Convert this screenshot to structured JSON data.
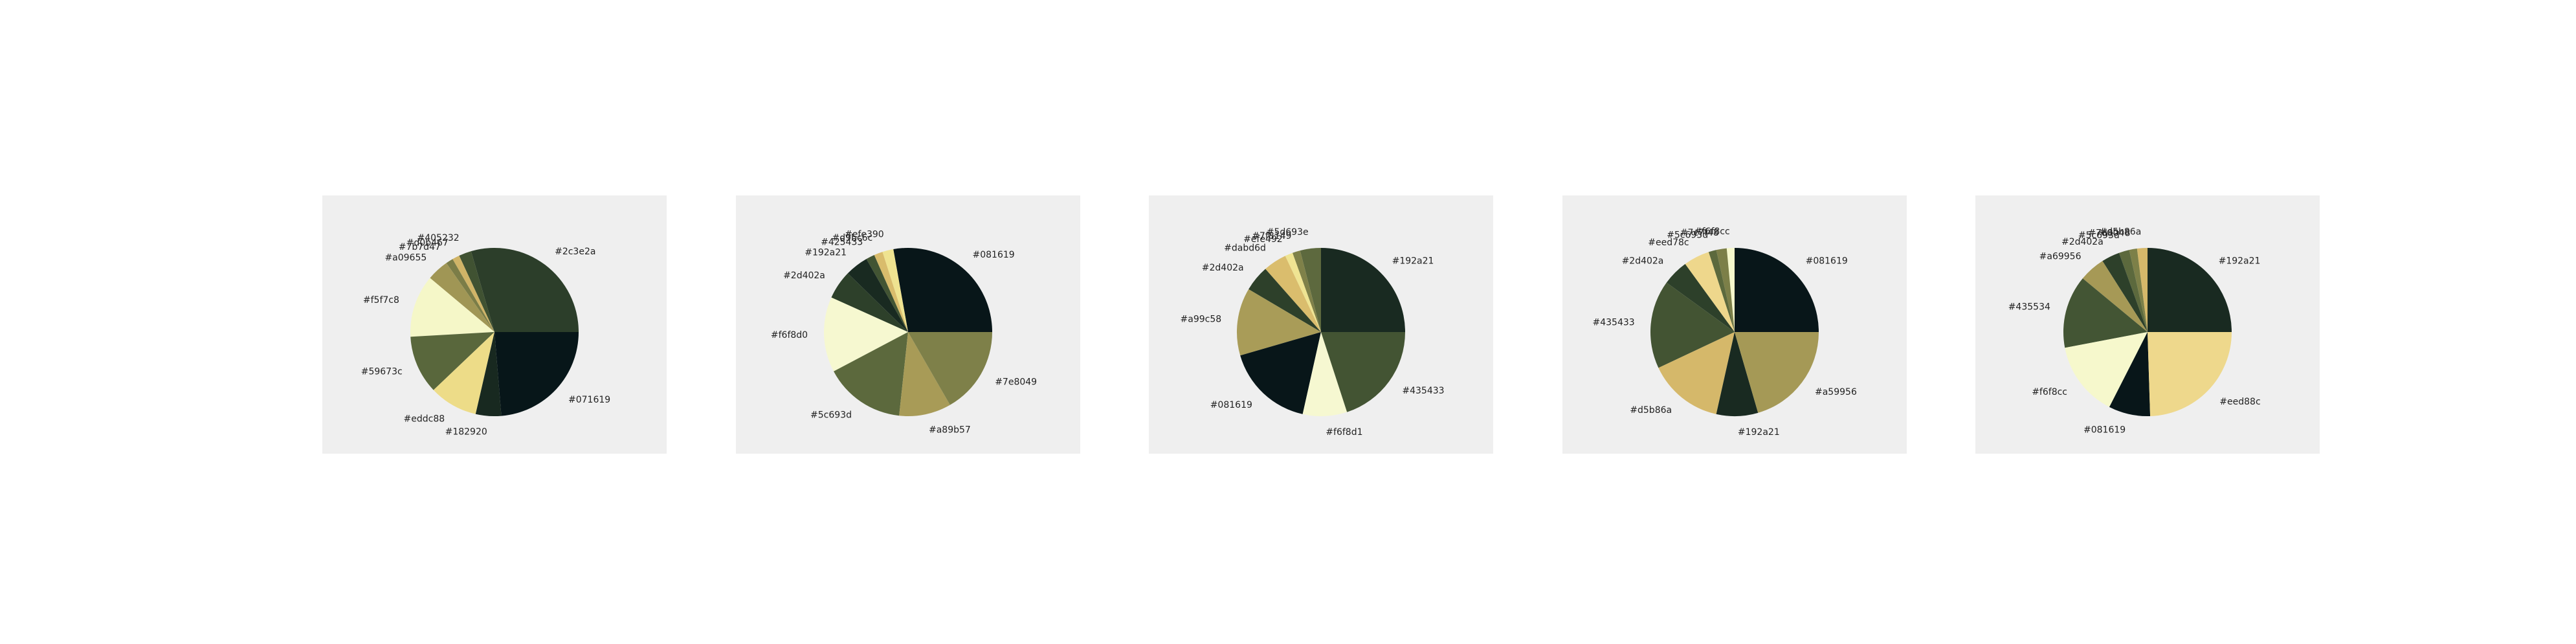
{
  "chart_data": [
    {
      "type": "pie",
      "slices": [
        {
          "label": "#2c3e2a",
          "value": 29.5,
          "color": "#2c3e2a"
        },
        {
          "label": "#405232",
          "value": 2.4,
          "color": "#405232"
        },
        {
          "label": "#d0b467",
          "value": 1.4,
          "color": "#d0b467"
        },
        {
          "label": "#7b7d47",
          "value": 1.4,
          "color": "#7b7d47"
        },
        {
          "label": "#a09655",
          "value": 4.2,
          "color": "#a09655"
        },
        {
          "label": "#f5f7c8",
          "value": 12.0,
          "color": "#f5f7c8"
        },
        {
          "label": "#59673c",
          "value": 11.2,
          "color": "#59673c"
        },
        {
          "label": "#eddc88",
          "value": 9.3,
          "color": "#eddc88"
        },
        {
          "label": "#182920",
          "value": 4.9,
          "color": "#182920"
        },
        {
          "label": "#071619",
          "value": 23.7,
          "color": "#071619"
        }
      ]
    },
    {
      "type": "pie",
      "slices": [
        {
          "label": "#081619",
          "value": 25.0,
          "color": "#081619"
        },
        {
          "label": "#efe390",
          "value": 1.9,
          "color": "#efe390"
        },
        {
          "label": "#d9bc6c",
          "value": 1.5,
          "color": "#d9bc6c"
        },
        {
          "label": "#425433",
          "value": 1.5,
          "color": "#425433"
        },
        {
          "label": "#192a21",
          "value": 4.0,
          "color": "#192a21"
        },
        {
          "label": "#2d402a",
          "value": 5.0,
          "color": "#2d402a"
        },
        {
          "label": "#f6f8d0",
          "value": 13.0,
          "color": "#f6f8d0"
        },
        {
          "label": "#5c693d",
          "value": 14.0,
          "color": "#5c693d"
        },
        {
          "label": "#a89b57",
          "value": 9.0,
          "color": "#a89b57"
        },
        {
          "label": "#7e8049",
          "value": 15.0,
          "color": "#7e8049"
        }
      ]
    },
    {
      "type": "pie",
      "slices": [
        {
          "label": "#192a21",
          "value": 25.0,
          "color": "#192a21"
        },
        {
          "label": "#5d693e",
          "value": 4.0,
          "color": "#5d693e"
        },
        {
          "label": "#7f8149",
          "value": 1.5,
          "color": "#7f8149"
        },
        {
          "label": "#efe492",
          "value": 1.5,
          "color": "#efe492"
        },
        {
          "label": "#dabd6d",
          "value": 4.5,
          "color": "#dabd6d"
        },
        {
          "label": "#2d402a",
          "value": 5.0,
          "color": "#2d402a"
        },
        {
          "label": "#a99c58",
          "value": 13.0,
          "color": "#a99c58"
        },
        {
          "label": "#081619",
          "value": 17.0,
          "color": "#081619"
        },
        {
          "label": "#f6f8d1",
          "value": 8.5,
          "color": "#f6f8d1"
        },
        {
          "label": "#435433",
          "value": 20.0,
          "color": "#435433"
        }
      ]
    },
    {
      "type": "pie",
      "slices": [
        {
          "label": "#081619",
          "value": 25.0,
          "color": "#081619"
        },
        {
          "label": "#f6f8cc",
          "value": 1.5,
          "color": "#f6f8cc"
        },
        {
          "label": "#7c7f48",
          "value": 2.0,
          "color": "#7c7f48"
        },
        {
          "label": "#5c693d",
          "value": 1.5,
          "color": "#5c693d"
        },
        {
          "label": "#eed78c",
          "value": 5.0,
          "color": "#eed78c"
        },
        {
          "label": "#2d402a",
          "value": 5.0,
          "color": "#2d402a"
        },
        {
          "label": "#435433",
          "value": 17.0,
          "color": "#435433"
        },
        {
          "label": "#d5b86a",
          "value": 14.5,
          "color": "#d5b86a"
        },
        {
          "label": "#192a21",
          "value": 8.0,
          "color": "#192a21"
        },
        {
          "label": "#a59956",
          "value": 20.5,
          "color": "#a59956"
        }
      ]
    },
    {
      "type": "pie",
      "slices": [
        {
          "label": "#192a21",
          "value": 25.0,
          "color": "#192a21"
        },
        {
          "label": "#d5b86a",
          "value": 2.0,
          "color": "#d5b86a"
        },
        {
          "label": "#7d8048",
          "value": 1.5,
          "color": "#7d8048"
        },
        {
          "label": "#5c693d",
          "value": 2.0,
          "color": "#5c693d"
        },
        {
          "label": "#2d402a",
          "value": 3.5,
          "color": "#2d402a"
        },
        {
          "label": "#a69956",
          "value": 5.0,
          "color": "#a69956"
        },
        {
          "label": "#435534",
          "value": 14.0,
          "color": "#435534"
        },
        {
          "label": "#f6f8cc",
          "value": 14.5,
          "color": "#f6f8cc"
        },
        {
          "label": "#081619",
          "value": 8.0,
          "color": "#081619"
        },
        {
          "label": "#eed88c",
          "value": 24.5,
          "color": "#eed88c"
        }
      ]
    }
  ]
}
